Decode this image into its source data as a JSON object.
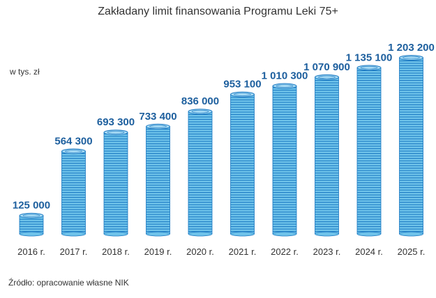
{
  "chart_data": {
    "type": "bar",
    "title": "Zakładany limit finansowania Programu Leki 75+",
    "ylabel": "w tys. zł",
    "categories": [
      "2016 r.",
      "2017 r.",
      "2018 r.",
      "2019 r.",
      "2020 r.",
      "2021 r.",
      "2022 r.",
      "2023 r.",
      "2024 r.",
      "2025 r."
    ],
    "values": [
      125000,
      564300,
      693300,
      733400,
      836000,
      953100,
      1010300,
      1070900,
      1135100,
      1203200
    ],
    "value_labels": [
      "125 000",
      "564 300",
      "693 300",
      "733 400",
      "836 000",
      "953 100",
      "1 010 300",
      "1 070 900",
      "1 135 100",
      "1 203 200"
    ],
    "ylim": [
      0,
      1203200
    ],
    "grid": false,
    "legend": "none"
  },
  "source": "Źródło: opracowanie własne NIK",
  "colors": {
    "coin_fill": "#6fc3ea",
    "coin_stripe": "#1a78c2",
    "coin_top": "#a9dcf5",
    "value_label": "#1d5f9e",
    "text": "#333333"
  }
}
